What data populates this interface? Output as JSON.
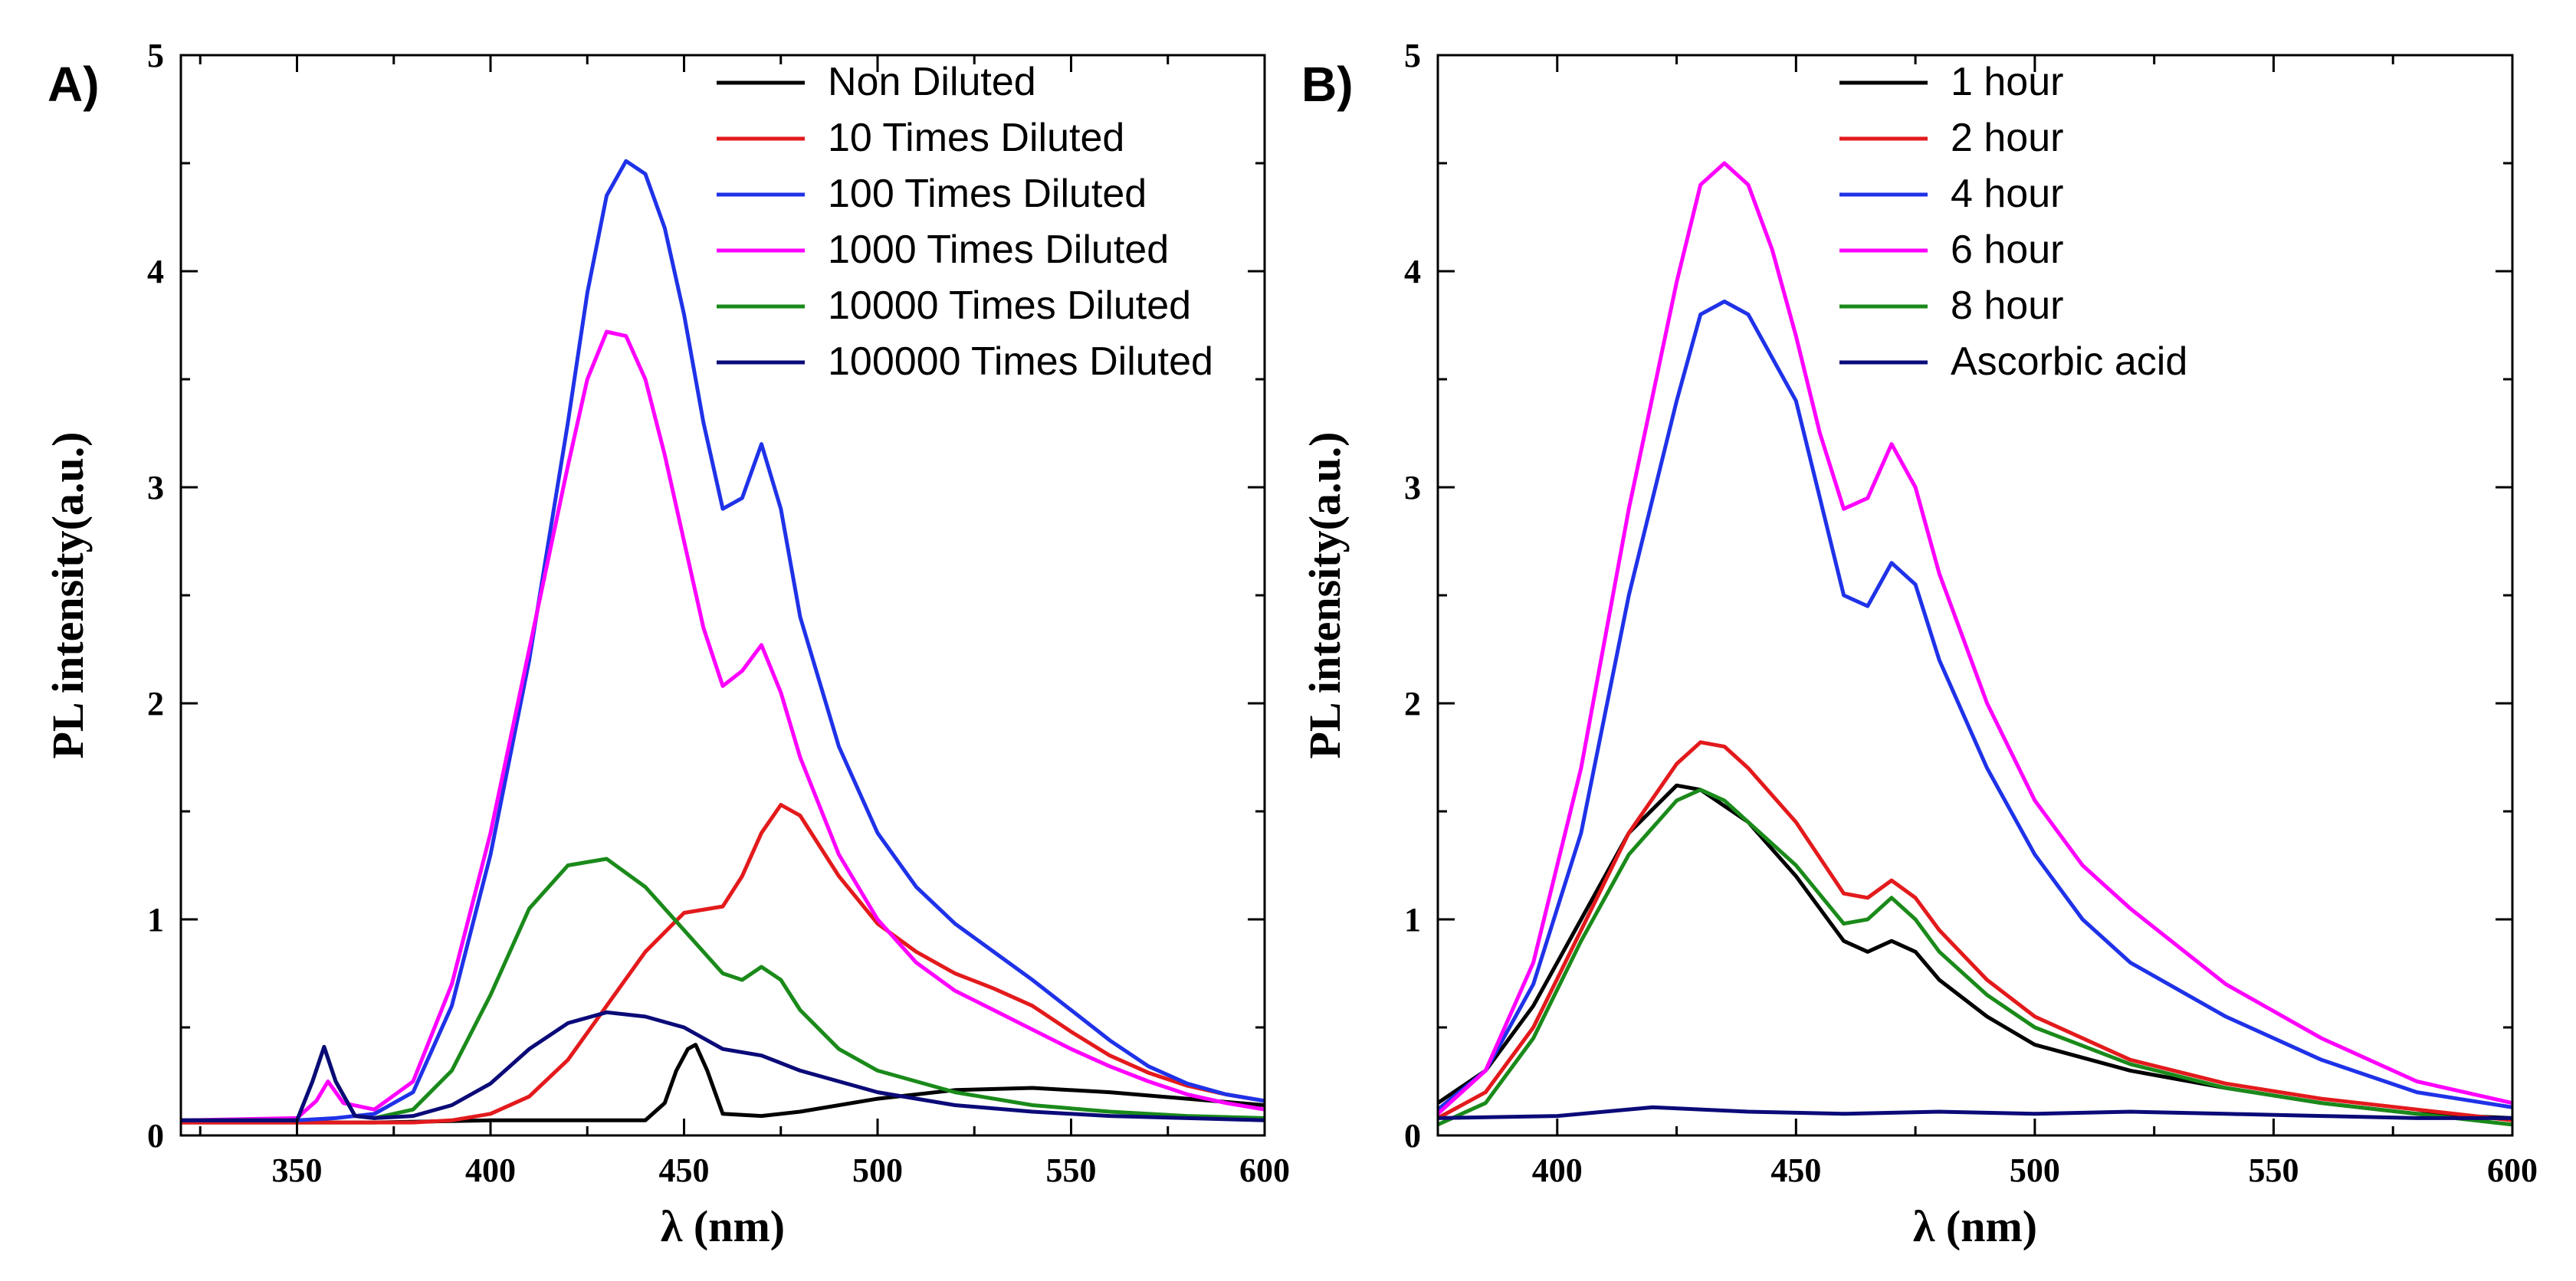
{
  "chart_data": [
    {
      "panel_label": "A)",
      "type": "line",
      "xlabel": "λ (nm)",
      "ylabel": "PL intensity(a.u.)",
      "xlim": [
        320,
        600
      ],
      "ylim": [
        0,
        5
      ],
      "xticks": [
        350,
        400,
        450,
        500,
        550,
        600
      ],
      "yticks": [
        0,
        1,
        2,
        3,
        4,
        5
      ],
      "legend_position": "top-right",
      "grid": false,
      "series": [
        {
          "name": "Non Diluted",
          "color": "#000000",
          "x": [
            320,
            350,
            370,
            400,
            420,
            440,
            445,
            448,
            451,
            453,
            456,
            460,
            470,
            480,
            500,
            520,
            540,
            560,
            580,
            600
          ],
          "y": [
            0.06,
            0.06,
            0.06,
            0.07,
            0.07,
            0.07,
            0.15,
            0.3,
            0.4,
            0.42,
            0.3,
            0.1,
            0.09,
            0.11,
            0.17,
            0.21,
            0.22,
            0.2,
            0.17,
            0.14
          ]
        },
        {
          "name": "10 Times Diluted",
          "color": "#e31a1c",
          "x": [
            320,
            350,
            370,
            380,
            390,
            400,
            410,
            420,
            430,
            440,
            450,
            460,
            465,
            470,
            475,
            480,
            490,
            500,
            510,
            520,
            530,
            540,
            550,
            560,
            570,
            580,
            590,
            600
          ],
          "y": [
            0.06,
            0.06,
            0.06,
            0.06,
            0.07,
            0.1,
            0.18,
            0.35,
            0.6,
            0.85,
            1.03,
            1.06,
            1.2,
            1.4,
            1.53,
            1.48,
            1.2,
            0.98,
            0.85,
            0.75,
            0.68,
            0.6,
            0.48,
            0.37,
            0.29,
            0.23,
            0.19,
            0.16
          ]
        },
        {
          "name": "100 Times Diluted",
          "color": "#1f32e8",
          "x": [
            320,
            350,
            360,
            370,
            380,
            390,
            400,
            410,
            420,
            425,
            430,
            435,
            440,
            445,
            450,
            455,
            460,
            465,
            470,
            475,
            480,
            490,
            500,
            510,
            520,
            530,
            540,
            550,
            560,
            570,
            580,
            590,
            600
          ],
          "y": [
            0.07,
            0.07,
            0.08,
            0.1,
            0.2,
            0.6,
            1.3,
            2.2,
            3.3,
            3.9,
            4.35,
            4.51,
            4.45,
            4.2,
            3.8,
            3.3,
            2.9,
            2.95,
            3.2,
            2.9,
            2.4,
            1.8,
            1.4,
            1.15,
            0.98,
            0.85,
            0.72,
            0.58,
            0.44,
            0.32,
            0.24,
            0.19,
            0.16
          ]
        },
        {
          "name": "1000 Times Diluted",
          "color": "#ff00ff",
          "x": [
            320,
            350,
            355,
            358,
            362,
            370,
            380,
            390,
            400,
            410,
            420,
            425,
            430,
            435,
            440,
            445,
            450,
            455,
            460,
            465,
            470,
            475,
            480,
            490,
            500,
            510,
            520,
            530,
            540,
            550,
            560,
            570,
            580,
            590,
            600
          ],
          "y": [
            0.07,
            0.08,
            0.16,
            0.25,
            0.15,
            0.12,
            0.25,
            0.7,
            1.4,
            2.25,
            3.1,
            3.5,
            3.72,
            3.7,
            3.5,
            3.15,
            2.75,
            2.35,
            2.08,
            2.15,
            2.27,
            2.05,
            1.75,
            1.3,
            1.0,
            0.8,
            0.67,
            0.58,
            0.49,
            0.4,
            0.32,
            0.25,
            0.19,
            0.15,
            0.12
          ]
        },
        {
          "name": "10000 Times Diluted",
          "color": "#1a8a1a",
          "x": [
            320,
            350,
            354,
            357,
            360,
            365,
            370,
            380,
            390,
            400,
            410,
            420,
            430,
            440,
            450,
            460,
            465,
            470,
            475,
            480,
            490,
            500,
            520,
            540,
            560,
            580,
            600
          ],
          "y": [
            0.07,
            0.07,
            0.25,
            0.41,
            0.25,
            0.09,
            0.08,
            0.12,
            0.3,
            0.65,
            1.05,
            1.25,
            1.28,
            1.15,
            0.95,
            0.75,
            0.72,
            0.78,
            0.72,
            0.58,
            0.4,
            0.3,
            0.2,
            0.14,
            0.11,
            0.09,
            0.08
          ]
        },
        {
          "name": "100000 Times Diluted",
          "color": "#0a0a78",
          "x": [
            320,
            350,
            354,
            357,
            360,
            365,
            370,
            380,
            390,
            400,
            410,
            420,
            430,
            440,
            450,
            460,
            470,
            480,
            500,
            520,
            540,
            560,
            580,
            600
          ],
          "y": [
            0.07,
            0.07,
            0.25,
            0.41,
            0.25,
            0.09,
            0.08,
            0.09,
            0.14,
            0.24,
            0.4,
            0.52,
            0.57,
            0.55,
            0.5,
            0.4,
            0.37,
            0.3,
            0.2,
            0.14,
            0.11,
            0.09,
            0.08,
            0.07
          ]
        }
      ]
    },
    {
      "panel_label": "B)",
      "type": "line",
      "xlabel": "λ (nm)",
      "ylabel": "PL intensity(a.u.)",
      "xlim": [
        375,
        600
      ],
      "ylim": [
        0,
        5
      ],
      "xticks": [
        400,
        450,
        500,
        550,
        600
      ],
      "yticks": [
        0,
        1,
        2,
        3,
        4,
        5
      ],
      "legend_position": "top-center",
      "grid": false,
      "series": [
        {
          "name": "1 hour",
          "color": "#000000",
          "x": [
            375,
            385,
            395,
            405,
            415,
            425,
            430,
            440,
            450,
            460,
            465,
            470,
            475,
            480,
            490,
            500,
            520,
            540,
            560,
            580,
            600
          ],
          "y": [
            0.15,
            0.3,
            0.6,
            1.0,
            1.4,
            1.62,
            1.6,
            1.45,
            1.2,
            0.9,
            0.85,
            0.9,
            0.85,
            0.72,
            0.55,
            0.42,
            0.3,
            0.22,
            0.15,
            0.1,
            0.08
          ]
        },
        {
          "name": "2 hour",
          "color": "#e31a1c",
          "x": [
            375,
            385,
            395,
            405,
            415,
            425,
            430,
            435,
            440,
            450,
            460,
            465,
            470,
            475,
            480,
            490,
            500,
            520,
            540,
            560,
            580,
            600
          ],
          "y": [
            0.08,
            0.2,
            0.5,
            0.95,
            1.4,
            1.72,
            1.82,
            1.8,
            1.7,
            1.45,
            1.12,
            1.1,
            1.18,
            1.1,
            0.95,
            0.72,
            0.55,
            0.35,
            0.24,
            0.17,
            0.12,
            0.07
          ]
        },
        {
          "name": "4 hour",
          "color": "#1f32e8",
          "x": [
            375,
            385,
            395,
            405,
            415,
            425,
            430,
            435,
            440,
            450,
            455,
            460,
            465,
            470,
            475,
            480,
            490,
            500,
            510,
            520,
            540,
            560,
            580,
            600
          ],
          "y": [
            0.12,
            0.3,
            0.7,
            1.4,
            2.5,
            3.4,
            3.8,
            3.86,
            3.8,
            3.4,
            2.95,
            2.5,
            2.45,
            2.65,
            2.55,
            2.2,
            1.7,
            1.3,
            1.0,
            0.8,
            0.55,
            0.35,
            0.2,
            0.13
          ]
        },
        {
          "name": "6 hour",
          "color": "#ff00ff",
          "x": [
            375,
            385,
            395,
            405,
            415,
            425,
            430,
            435,
            440,
            445,
            450,
            455,
            460,
            465,
            470,
            475,
            480,
            490,
            500,
            510,
            520,
            540,
            560,
            580,
            600
          ],
          "y": [
            0.1,
            0.3,
            0.8,
            1.7,
            2.9,
            3.95,
            4.4,
            4.5,
            4.4,
            4.1,
            3.7,
            3.25,
            2.9,
            2.95,
            3.2,
            3.0,
            2.6,
            2.0,
            1.55,
            1.25,
            1.05,
            0.7,
            0.45,
            0.25,
            0.15
          ]
        },
        {
          "name": "8 hour",
          "color": "#1a8a1a",
          "x": [
            375,
            385,
            395,
            405,
            415,
            425,
            430,
            435,
            440,
            450,
            460,
            465,
            470,
            475,
            480,
            490,
            500,
            520,
            540,
            560,
            580,
            600
          ],
          "y": [
            0.05,
            0.15,
            0.45,
            0.9,
            1.3,
            1.55,
            1.6,
            1.55,
            1.45,
            1.25,
            0.98,
            1.0,
            1.1,
            1.0,
            0.85,
            0.65,
            0.5,
            0.33,
            0.22,
            0.15,
            0.1,
            0.05
          ]
        },
        {
          "name": "Ascorbic acid",
          "color": "#0a0a78",
          "x": [
            375,
            400,
            420,
            440,
            460,
            480,
            500,
            520,
            540,
            560,
            580,
            600
          ],
          "y": [
            0.08,
            0.09,
            0.13,
            0.11,
            0.1,
            0.11,
            0.1,
            0.11,
            0.1,
            0.09,
            0.08,
            0.08
          ]
        }
      ]
    }
  ]
}
